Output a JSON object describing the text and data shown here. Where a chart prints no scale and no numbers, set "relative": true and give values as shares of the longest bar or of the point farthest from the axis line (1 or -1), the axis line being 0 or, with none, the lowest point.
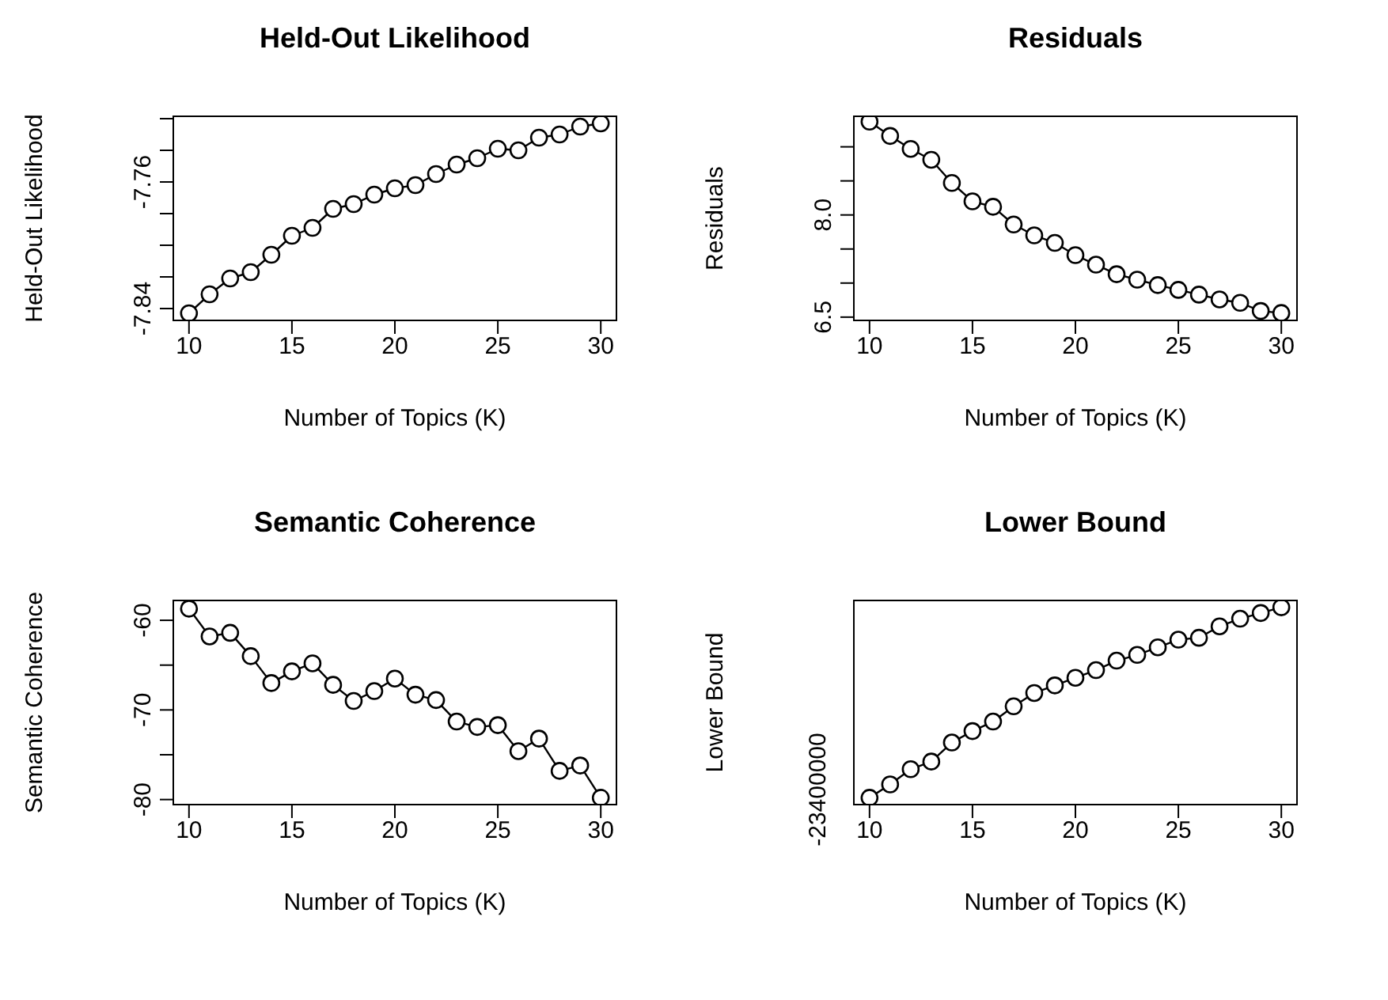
{
  "chart_data": [
    {
      "type": "line",
      "title": "Held-Out Likelihood",
      "xlabel": "Number of Topics (K)",
      "ylabel": "Held-Out Likelihood",
      "marker": "circle",
      "line_style": "solid",
      "x": [
        10,
        11,
        12,
        13,
        14,
        15,
        16,
        17,
        18,
        19,
        20,
        21,
        22,
        23,
        24,
        25,
        26,
        27,
        28,
        29,
        30
      ],
      "series": [
        {
          "color": "#000000",
          "values": [
            -7.843,
            -7.831,
            -7.821,
            -7.817,
            -7.806,
            -7.794,
            -7.789,
            -7.777,
            -7.774,
            -7.768,
            -7.764,
            -7.762,
            -7.755,
            -7.749,
            -7.745,
            -7.739,
            -7.74,
            -7.732,
            -7.73,
            -7.725,
            -7.723
          ]
        }
      ],
      "xlim": [
        9.2,
        30.8
      ],
      "xticks": [
        10,
        15,
        20,
        25,
        30
      ],
      "ylim": [
        -7.848,
        -7.718
      ],
      "yticks": [
        {
          "value": -7.84,
          "label": "-7.84"
        },
        {
          "value": -7.82,
          "label": null
        },
        {
          "value": -7.8,
          "label": null
        },
        {
          "value": -7.78,
          "label": null
        },
        {
          "value": -7.76,
          "label": "-7.76"
        },
        {
          "value": -7.74,
          "label": null
        },
        {
          "value": -7.72,
          "label": null
        }
      ]
    },
    {
      "type": "line",
      "title": "Residuals",
      "xlabel": "Number of Topics (K)",
      "ylabel": "Residuals",
      "marker": "circle",
      "line_style": "solid",
      "x": [
        10,
        11,
        12,
        13,
        14,
        15,
        16,
        17,
        18,
        19,
        20,
        21,
        22,
        23,
        24,
        25,
        26,
        27,
        28,
        29,
        30
      ],
      "series": [
        {
          "color": "#000000",
          "values": [
            9.37,
            9.16,
            8.97,
            8.81,
            8.47,
            8.2,
            8.12,
            7.86,
            7.7,
            7.59,
            7.41,
            7.27,
            7.13,
            7.05,
            6.97,
            6.9,
            6.83,
            6.76,
            6.71,
            6.59,
            6.56
          ]
        }
      ],
      "xlim": [
        9.2,
        30.8
      ],
      "xticks": [
        10,
        15,
        20,
        25,
        30
      ],
      "ylim": [
        6.44,
        9.46
      ],
      "yticks": [
        {
          "value": 6.5,
          "label": "6.5"
        },
        {
          "value": 7,
          "label": null
        },
        {
          "value": 7.5,
          "label": null
        },
        {
          "value": 8,
          "label": "8.0"
        },
        {
          "value": 8.5,
          "label": null
        },
        {
          "value": 9,
          "label": null
        }
      ]
    },
    {
      "type": "line",
      "title": "Semantic Coherence",
      "xlabel": "Number of Topics (K)",
      "ylabel": "Semantic Coherence",
      "marker": "circle",
      "line_style": "solid",
      "x": [
        10,
        11,
        12,
        13,
        14,
        15,
        16,
        17,
        18,
        19,
        20,
        21,
        22,
        23,
        24,
        25,
        26,
        27,
        28,
        29,
        30
      ],
      "series": [
        {
          "color": "#000000",
          "values": [
            -58.7,
            -61.8,
            -61.4,
            -64.0,
            -67.0,
            -65.7,
            -64.8,
            -67.2,
            -69.0,
            -67.9,
            -66.5,
            -68.3,
            -68.9,
            -71.3,
            -71.9,
            -71.7,
            -74.6,
            -73.2,
            -76.8,
            -76.2,
            -79.8
          ]
        }
      ],
      "xlim": [
        9.2,
        30.8
      ],
      "xticks": [
        10,
        15,
        20,
        25,
        30
      ],
      "ylim": [
        -80.65,
        -57.7
      ],
      "yticks": [
        -80,
        {
          "value": -75,
          "label": null
        },
        -70,
        {
          "value": -65,
          "label": null
        },
        -60
      ]
    },
    {
      "type": "line",
      "title": "Lower Bound",
      "xlabel": "Number of Topics (K)",
      "ylabel": "Lower Bound",
      "marker": "circle",
      "line_style": "solid",
      "relative": true,
      "annotations": [
        "-23400000"
      ],
      "x": [
        10,
        11,
        12,
        13,
        14,
        15,
        16,
        17,
        18,
        19,
        20,
        21,
        22,
        23,
        24,
        25,
        26,
        27,
        28,
        29,
        30
      ],
      "series": [
        {
          "color": "#000000",
          "values": [
            0,
            0.07,
            0.15,
            0.19,
            0.29,
            0.35,
            0.4,
            0.48,
            0.55,
            0.59,
            0.63,
            0.67,
            0.72,
            0.75,
            0.79,
            0.83,
            0.84,
            0.9,
            0.94,
            0.97,
            1
          ]
        }
      ],
      "xlim": [
        9.2,
        30.8
      ],
      "xticks": [
        10,
        15,
        20,
        25,
        30
      ]
    }
  ]
}
